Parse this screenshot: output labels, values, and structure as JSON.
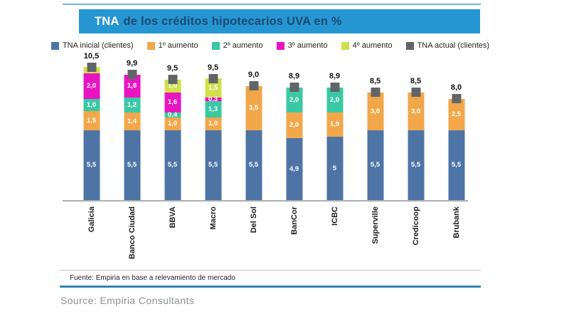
{
  "header": {
    "title_strong": "TNA",
    "title_rest": "de los créditos hipotecarios UVA en %"
  },
  "footer": {
    "fuente": "Fuente: Empiria en base a relevamiento de mercado",
    "source": "Source: Empiria Consultants"
  },
  "colors": {
    "title_bar": "#2696d3",
    "top_rule": "#6ab8dc",
    "blue_rule": "#2f85ae",
    "axis": "#abaeb1"
  },
  "chart_data": {
    "type": "bar",
    "subtype": "stacked-bar-with-marker",
    "title": "TNA de los créditos hipotecarios UVA en %",
    "categories": [
      "Galicia",
      "Banco Ciudad",
      "BBVA",
      "Macro",
      "Del Sol",
      "BanCor",
      "ICBC",
      "Superville",
      "Credicoop",
      "Brubank"
    ],
    "series": [
      {
        "name": "TNA inicial (clientes)",
        "color": "#4e74a6",
        "values": [
          5.5,
          5.5,
          5.5,
          5.5,
          5.5,
          4.9,
          5,
          5.5,
          5.5,
          5.5
        ],
        "labels": [
          "5,5",
          "5,5",
          "5,5",
          "5,5",
          "5,5",
          "4,9",
          "5",
          "5,5",
          "5,5",
          "5,5"
        ]
      },
      {
        "name": "1º aumento",
        "color": "#f1a74a",
        "values": [
          1.5,
          1.4,
          1.0,
          1.0,
          3.5,
          2.0,
          1.9,
          3.0,
          3.0,
          2.5
        ],
        "labels": [
          "1,5",
          "1,4",
          "1,0",
          "1,0",
          "3,5",
          "2,0",
          "1,9",
          "3,0",
          "3,0",
          "2,5"
        ]
      },
      {
        "name": "2º aumento",
        "color": "#3bc8a4",
        "values": [
          1.0,
          1.2,
          0.4,
          1.3,
          0,
          2.0,
          2.0,
          0,
          0,
          0
        ],
        "labels": [
          "1,0",
          "1,2",
          "0,4",
          "1,3",
          "",
          "2,0",
          "2,0",
          "",
          "",
          ""
        ]
      },
      {
        "name": "3º aumento",
        "color": "#e914c1",
        "values": [
          2.0,
          1.8,
          1.6,
          0.3,
          0,
          0,
          0,
          0,
          0,
          0
        ],
        "labels": [
          "2,0",
          "1,8",
          "1,6",
          "0,3",
          "",
          "",
          "",
          "",
          "",
          ""
        ]
      },
      {
        "name": "4º aumento",
        "color": "#cfe04b",
        "values": [
          0.5,
          0,
          1.0,
          1.5,
          0,
          0,
          0,
          0,
          0,
          0
        ],
        "labels": [
          "0,5",
          "",
          "1,0",
          "1,5",
          "",
          "",
          "",
          "",
          "",
          ""
        ]
      }
    ],
    "marker_series": {
      "name": "TNA actual (clientes)",
      "color": "#626568"
    },
    "totals": {
      "values": [
        10.5,
        9.9,
        9.5,
        9.5,
        9.0,
        8.9,
        8.9,
        8.5,
        8.5,
        8.0
      ],
      "labels": [
        "10,5",
        "9,9",
        "9,5",
        "9,5",
        "9,0",
        "8,9",
        "8,9",
        "8,5",
        "8,5",
        "8,0"
      ]
    },
    "ylim": [
      0,
      11
    ],
    "grid": false,
    "legend_position": "top",
    "xlabel": "",
    "ylabel": ""
  }
}
